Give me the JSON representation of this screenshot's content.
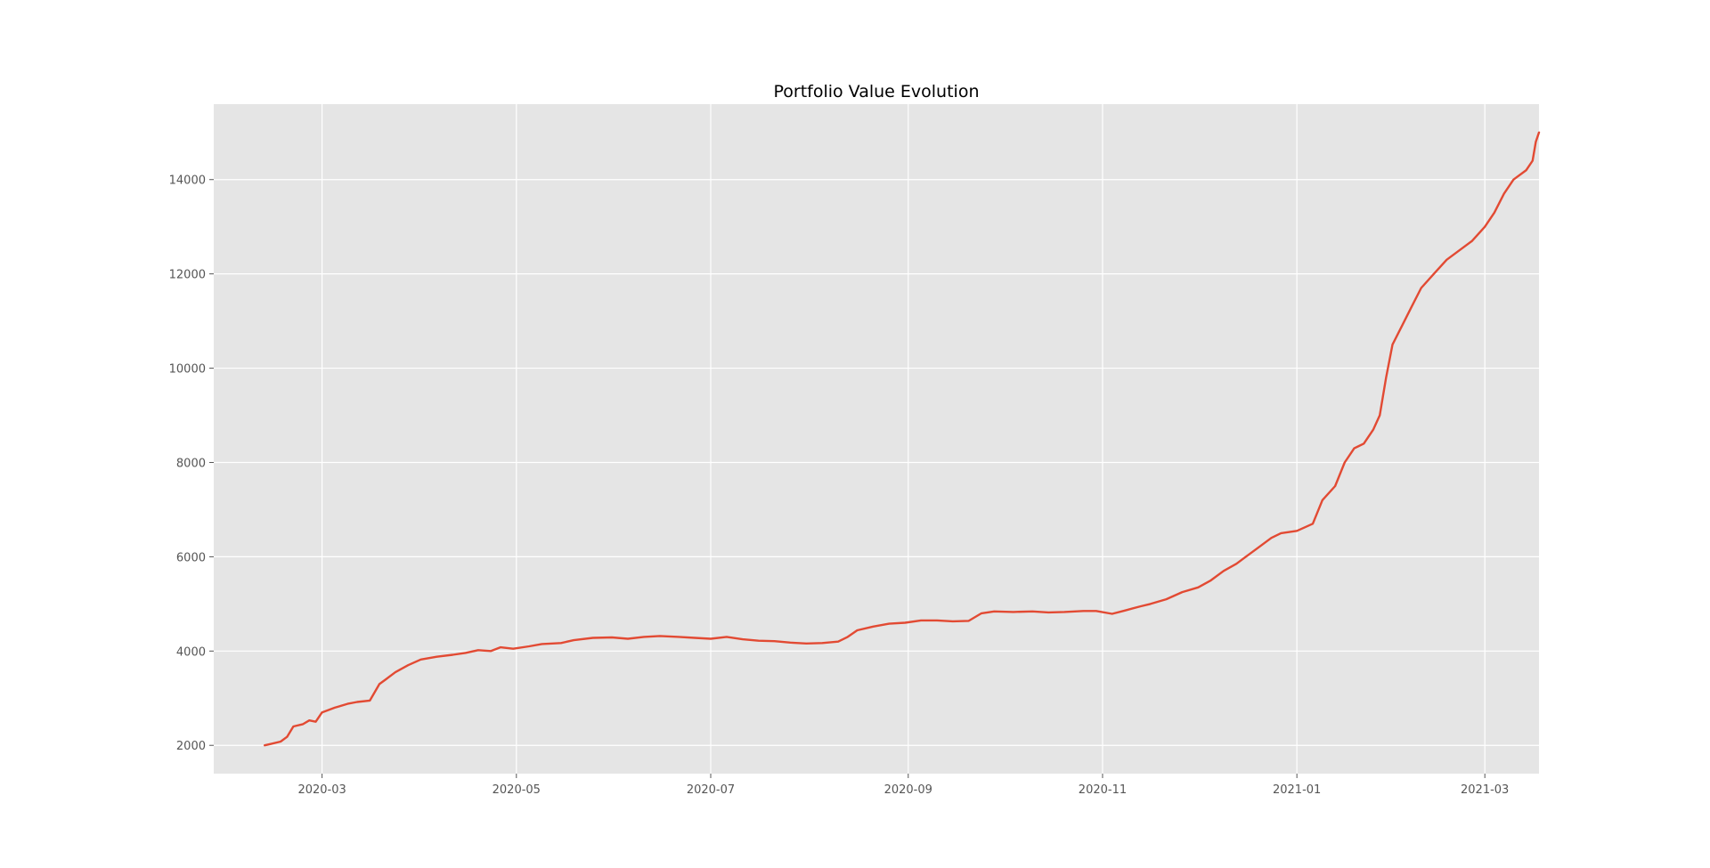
{
  "chart_data": {
    "type": "line",
    "title": "Portfolio Value Evolution",
    "xlabel": "",
    "ylabel": "",
    "x_range": [
      "2020-01-27",
      "2021-03-18"
    ],
    "ylim": [
      1400,
      15600
    ],
    "grid": true,
    "legend": "none",
    "x_ticks": [
      "2020-03",
      "2020-05",
      "2020-07",
      "2020-09",
      "2020-11",
      "2021-01",
      "2021-03"
    ],
    "y_ticks": [
      2000,
      4000,
      6000,
      8000,
      10000,
      12000,
      14000
    ],
    "series": [
      {
        "color": "#e24a33",
        "points": [
          [
            "2020-02-12",
            2000
          ],
          [
            "2020-02-14",
            2030
          ],
          [
            "2020-02-17",
            2080
          ],
          [
            "2020-02-19",
            2180
          ],
          [
            "2020-02-21",
            2400
          ],
          [
            "2020-02-24",
            2450
          ],
          [
            "2020-02-26",
            2530
          ],
          [
            "2020-02-28",
            2500
          ],
          [
            "2020-03-01",
            2700
          ],
          [
            "2020-03-05",
            2800
          ],
          [
            "2020-03-09",
            2880
          ],
          [
            "2020-03-12",
            2920
          ],
          [
            "2020-03-16",
            2950
          ],
          [
            "2020-03-19",
            3300
          ],
          [
            "2020-03-21",
            3400
          ],
          [
            "2020-03-24",
            3550
          ],
          [
            "2020-03-28",
            3700
          ],
          [
            "2020-04-01",
            3820
          ],
          [
            "2020-04-06",
            3880
          ],
          [
            "2020-04-11",
            3920
          ],
          [
            "2020-04-15",
            3960
          ],
          [
            "2020-04-19",
            4020
          ],
          [
            "2020-04-23",
            4000
          ],
          [
            "2020-04-26",
            4080
          ],
          [
            "2020-04-30",
            4050
          ],
          [
            "2020-05-05",
            4100
          ],
          [
            "2020-05-09",
            4150
          ],
          [
            "2020-05-15",
            4170
          ],
          [
            "2020-05-19",
            4230
          ],
          [
            "2020-05-25",
            4280
          ],
          [
            "2020-05-31",
            4290
          ],
          [
            "2020-06-05",
            4260
          ],
          [
            "2020-06-10",
            4300
          ],
          [
            "2020-06-15",
            4320
          ],
          [
            "2020-06-21",
            4300
          ],
          [
            "2020-06-26",
            4280
          ],
          [
            "2020-07-01",
            4260
          ],
          [
            "2020-07-06",
            4300
          ],
          [
            "2020-07-11",
            4250
          ],
          [
            "2020-07-16",
            4220
          ],
          [
            "2020-07-21",
            4210
          ],
          [
            "2020-07-26",
            4180
          ],
          [
            "2020-07-31",
            4160
          ],
          [
            "2020-08-05",
            4170
          ],
          [
            "2020-08-10",
            4200
          ],
          [
            "2020-08-13",
            4300
          ],
          [
            "2020-08-16",
            4440
          ],
          [
            "2020-08-21",
            4520
          ],
          [
            "2020-08-26",
            4580
          ],
          [
            "2020-08-31",
            4600
          ],
          [
            "2020-09-05",
            4650
          ],
          [
            "2020-09-10",
            4650
          ],
          [
            "2020-09-15",
            4630
          ],
          [
            "2020-09-20",
            4640
          ],
          [
            "2020-09-24",
            4800
          ],
          [
            "2020-09-28",
            4840
          ],
          [
            "2020-10-04",
            4830
          ],
          [
            "2020-10-10",
            4840
          ],
          [
            "2020-10-15",
            4820
          ],
          [
            "2020-10-20",
            4830
          ],
          [
            "2020-10-26",
            4850
          ],
          [
            "2020-10-30",
            4850
          ],
          [
            "2020-11-04",
            4790
          ],
          [
            "2020-11-08",
            4860
          ],
          [
            "2020-11-13",
            4950
          ],
          [
            "2020-11-16",
            5000
          ],
          [
            "2020-11-21",
            5100
          ],
          [
            "2020-11-26",
            5250
          ],
          [
            "2020-12-01",
            5350
          ],
          [
            "2020-12-05",
            5500
          ],
          [
            "2020-12-09",
            5700
          ],
          [
            "2020-12-13",
            5850
          ],
          [
            "2020-12-17",
            6050
          ],
          [
            "2020-12-20",
            6200
          ],
          [
            "2020-12-24",
            6400
          ],
          [
            "2020-12-27",
            6500
          ],
          [
            "2021-01-01",
            6550
          ],
          [
            "2021-01-06",
            6700
          ],
          [
            "2021-01-09",
            7200
          ],
          [
            "2021-01-13",
            7500
          ],
          [
            "2021-01-16",
            8000
          ],
          [
            "2021-01-19",
            8300
          ],
          [
            "2021-01-22",
            8400
          ],
          [
            "2021-01-25",
            8700
          ],
          [
            "2021-01-27",
            9000
          ],
          [
            "2021-01-29",
            9800
          ],
          [
            "2021-01-31",
            10500
          ],
          [
            "2021-02-03",
            10900
          ],
          [
            "2021-02-06",
            11300
          ],
          [
            "2021-02-09",
            11700
          ],
          [
            "2021-02-13",
            12000
          ],
          [
            "2021-02-17",
            12300
          ],
          [
            "2021-02-21",
            12500
          ],
          [
            "2021-02-25",
            12700
          ],
          [
            "2021-03-01",
            13000
          ],
          [
            "2021-03-04",
            13300
          ],
          [
            "2021-03-07",
            13700
          ],
          [
            "2021-03-10",
            14000
          ],
          [
            "2021-03-14",
            14200
          ],
          [
            "2021-03-16",
            14400
          ],
          [
            "2021-03-17",
            14800
          ],
          [
            "2021-03-18",
            15000
          ]
        ]
      }
    ]
  }
}
